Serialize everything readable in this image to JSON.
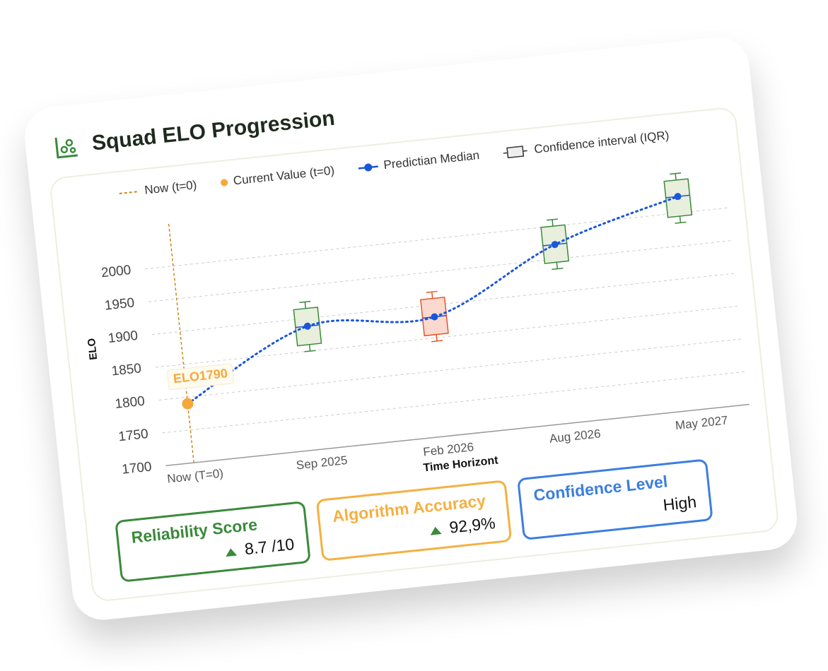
{
  "chart_data": {
    "type": "box",
    "title": "Squad ELO Progression",
    "x_label": "Time Horizont",
    "y_label": "ELO",
    "categories": [
      "Now (T=0)",
      "Sep 2025",
      "Feb 2026",
      "Aug 2026",
      "May 2027"
    ],
    "ylim": [
      1700,
      2075
    ],
    "yticks": [
      1700,
      1750,
      1800,
      1850,
      1900,
      1950,
      2000
    ],
    "grid": true,
    "now_line": {
      "name": "Now (t=0)",
      "color": "#c98a1a"
    },
    "current_value": {
      "name": "Current Value (t=0)",
      "value": 1790,
      "label": "ELO1790",
      "color": "#f5a83a"
    },
    "series": [
      {
        "name": "Predictian Median",
        "color": "#1a56db",
        "values": [
          1790,
          1888,
          1882,
          1972,
          2025
        ]
      }
    ],
    "boxes": {
      "name": "Confidence interval (IQR)",
      "low": [
        null,
        1850,
        1845,
        1935,
        1985
      ],
      "q1": [
        null,
        1860,
        1855,
        1945,
        1995
      ],
      "q3": [
        null,
        1915,
        1910,
        2000,
        2050
      ],
      "high": [
        null,
        1925,
        1920,
        2010,
        2060
      ],
      "colors": [
        null,
        "#3a8a3a",
        "#e8562a",
        "#3a8a3a",
        "#3a8a3a"
      ],
      "fills": [
        null,
        "#e8efdc",
        "#fbd9cf",
        "#e8efdc",
        "#e8efdc"
      ]
    }
  },
  "stats": [
    {
      "label": "Reliability Score",
      "value": "8.7 /10",
      "color": "#3a8a3a",
      "trend": "up"
    },
    {
      "label": "Algorithm Accuracy",
      "value": "92,9%",
      "color": "#f5b041",
      "trend": "up"
    },
    {
      "label": "Confidence Level",
      "value": "High",
      "color": "#3b7ee0",
      "trend": "none"
    }
  ]
}
